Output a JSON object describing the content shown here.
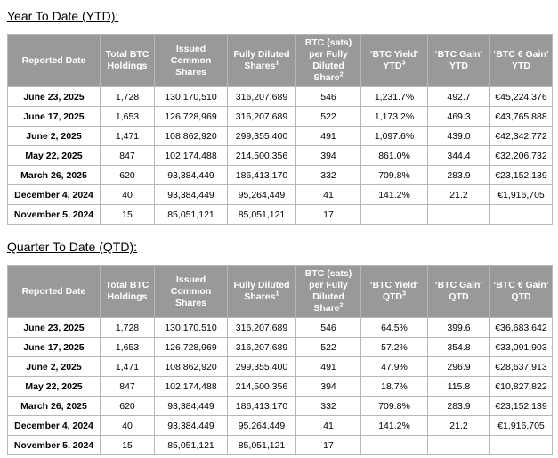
{
  "colors": {
    "header_bg": "#999999",
    "header_text": "#ffffff",
    "border": "#b7b7b7",
    "body_text": "#000000",
    "page_bg": "#ffffff"
  },
  "sections": [
    {
      "id": "ytd",
      "title": "Year To Date (YTD):",
      "columns": [
        {
          "label": "Reported Date",
          "sup": ""
        },
        {
          "label": "Total BTC Holdings",
          "sup": ""
        },
        {
          "label": "Issued Common Shares",
          "sup": ""
        },
        {
          "label": "Fully Diluted Shares",
          "sup": "1"
        },
        {
          "label": "BTC (sats) per Fully Diluted Share",
          "sup": "2"
        },
        {
          "label": "‘BTC Yield’ YTD",
          "sup": "3"
        },
        {
          "label": "‘BTC Gain’ YTD",
          "sup": ""
        },
        {
          "label": "‘BTC € Gain’ YTD",
          "sup": ""
        }
      ],
      "rows": [
        [
          "June 23, 2025",
          "1,728",
          "130,170,510",
          "316,207,689",
          "546",
          "1,231.7%",
          "492.7",
          "€45,224,376"
        ],
        [
          "June 17, 2025",
          "1,653",
          "126,728,969",
          "316,207,689",
          "522",
          "1,173.2%",
          "469.3",
          "€43,765,888"
        ],
        [
          "June 2, 2025",
          "1,471",
          "108,862,920",
          "299,355,400",
          "491",
          "1,097.6%",
          "439.0",
          "€42,342,772"
        ],
        [
          "May 22, 2025",
          "847",
          "102,174,488",
          "214,500,356",
          "394",
          "861.0%",
          "344.4",
          "€32,206,732"
        ],
        [
          "March 26, 2025",
          "620",
          "93,384,449",
          "186,413,170",
          "332",
          "709.8%",
          "283.9",
          "€23,152,139"
        ],
        [
          "December 4, 2024",
          "40",
          "93,384,449",
          "95,264,449",
          "41",
          "141.2%",
          "21.2",
          "€1,916,705"
        ],
        [
          "November 5, 2024",
          "15",
          "85,051,121",
          "85,051,121",
          "17",
          "",
          "",
          ""
        ]
      ]
    },
    {
      "id": "qtd",
      "title": "Quarter To Date (QTD):",
      "columns": [
        {
          "label": "Reported Date",
          "sup": ""
        },
        {
          "label": "Total BTC Holdings",
          "sup": ""
        },
        {
          "label": "Issued Common Shares",
          "sup": ""
        },
        {
          "label": "Fully Diluted Shares",
          "sup": "1"
        },
        {
          "label": "BTC (sats) per Fully Diluted Share",
          "sup": "2"
        },
        {
          "label": "‘BTC Yield’ QTD",
          "sup": "3"
        },
        {
          "label": "‘BTC Gain’ QTD",
          "sup": ""
        },
        {
          "label": "‘BTC € Gain’ QTD",
          "sup": ""
        }
      ],
      "rows": [
        [
          "June 23, 2025",
          "1,728",
          "130,170,510",
          "316,207,689",
          "546",
          "64.5%",
          "399.6",
          "€36,683,642"
        ],
        [
          "June 17, 2025",
          "1,653",
          "126,728,969",
          "316,207,689",
          "522",
          "57.2%",
          "354.8",
          "€33,091,903"
        ],
        [
          "June 2, 2025",
          "1,471",
          "108,862,920",
          "299,355,400",
          "491",
          "47.9%",
          "296.9",
          "€28,637,913"
        ],
        [
          "May 22, 2025",
          "847",
          "102,174,488",
          "214,500,356",
          "394",
          "18.7%",
          "115.8",
          "€10,827,822"
        ],
        [
          "March 26, 2025",
          "620",
          "93,384,449",
          "186,413,170",
          "332",
          "709.8%",
          "283.9",
          "€23,152,139"
        ],
        [
          "December 4, 2024",
          "40",
          "93,384,449",
          "95,264,449",
          "41",
          "141.2%",
          "21.2",
          "€1,916,705"
        ],
        [
          "November 5, 2024",
          "15",
          "85,051,121",
          "85,051,121",
          "17",
          "",
          "",
          ""
        ]
      ]
    }
  ]
}
